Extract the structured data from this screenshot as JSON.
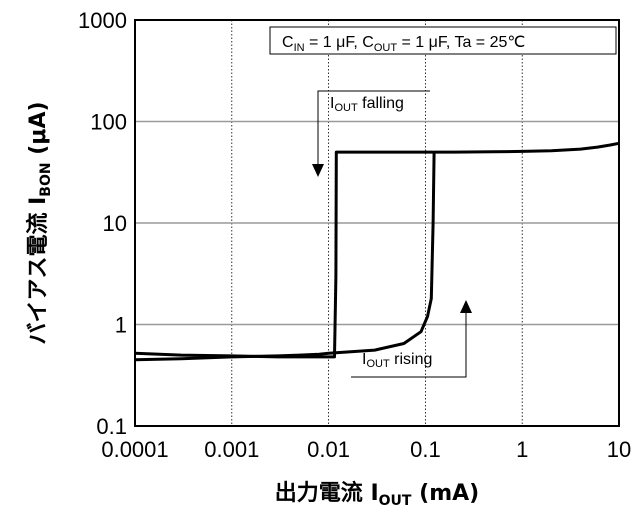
{
  "chart_data": {
    "type": "line",
    "x_scale": "log",
    "y_scale": "log",
    "xlim": [
      0.0001,
      10
    ],
    "ylim": [
      0.1,
      1000
    ],
    "grid": true,
    "x_ticks": [
      "0.0001",
      "0.001",
      "0.01",
      "0.1",
      "1",
      "10"
    ],
    "y_ticks": [
      "0.1",
      "1",
      "10",
      "100",
      "1000"
    ],
    "xlabel": {
      "main": "出力電流 I",
      "sub": "OUT",
      "unit": " (mA)"
    },
    "ylabel": {
      "main": "バイアス電流 I",
      "sub": "BON",
      "unit": " (μA)"
    },
    "condition": {
      "p1": "C",
      "p1_sub": "IN",
      "p1_val": " = 1 μF, C",
      "p2_sub": "OUT",
      "p2_val": " = 1 μF, Ta = 25℃"
    },
    "annotations": {
      "falling": {
        "p": "I",
        "sub": "OUT",
        "rest": " falling"
      },
      "rising": {
        "p": "I",
        "sub": "OUT",
        "rest": " rising"
      }
    },
    "series": [
      {
        "x": [
          0.0001,
          0.0003,
          0.001,
          0.003,
          0.005,
          0.008,
          0.01,
          0.03,
          0.06,
          0.09,
          0.105,
          0.115,
          0.12,
          0.123,
          0.2,
          0.5,
          1,
          2,
          4,
          6,
          8,
          10
        ],
        "y": [
          0.45,
          0.46,
          0.48,
          0.49,
          0.5,
          0.51,
          0.52,
          0.56,
          0.65,
          0.85,
          1.2,
          1.8,
          10,
          50,
          50,
          50.3,
          50.7,
          51.5,
          53.5,
          56,
          58.5,
          61
        ],
        "color": "#000000"
      },
      {
        "x": [
          0.0001,
          0.0003,
          0.001,
          0.003,
          0.007,
          0.0115,
          0.0119,
          0.012,
          0.05,
          0.12
        ],
        "y": [
          0.52,
          0.5,
          0.49,
          0.48,
          0.48,
          0.48,
          3,
          50,
          50,
          50
        ],
        "color": "#000000"
      }
    ]
  }
}
